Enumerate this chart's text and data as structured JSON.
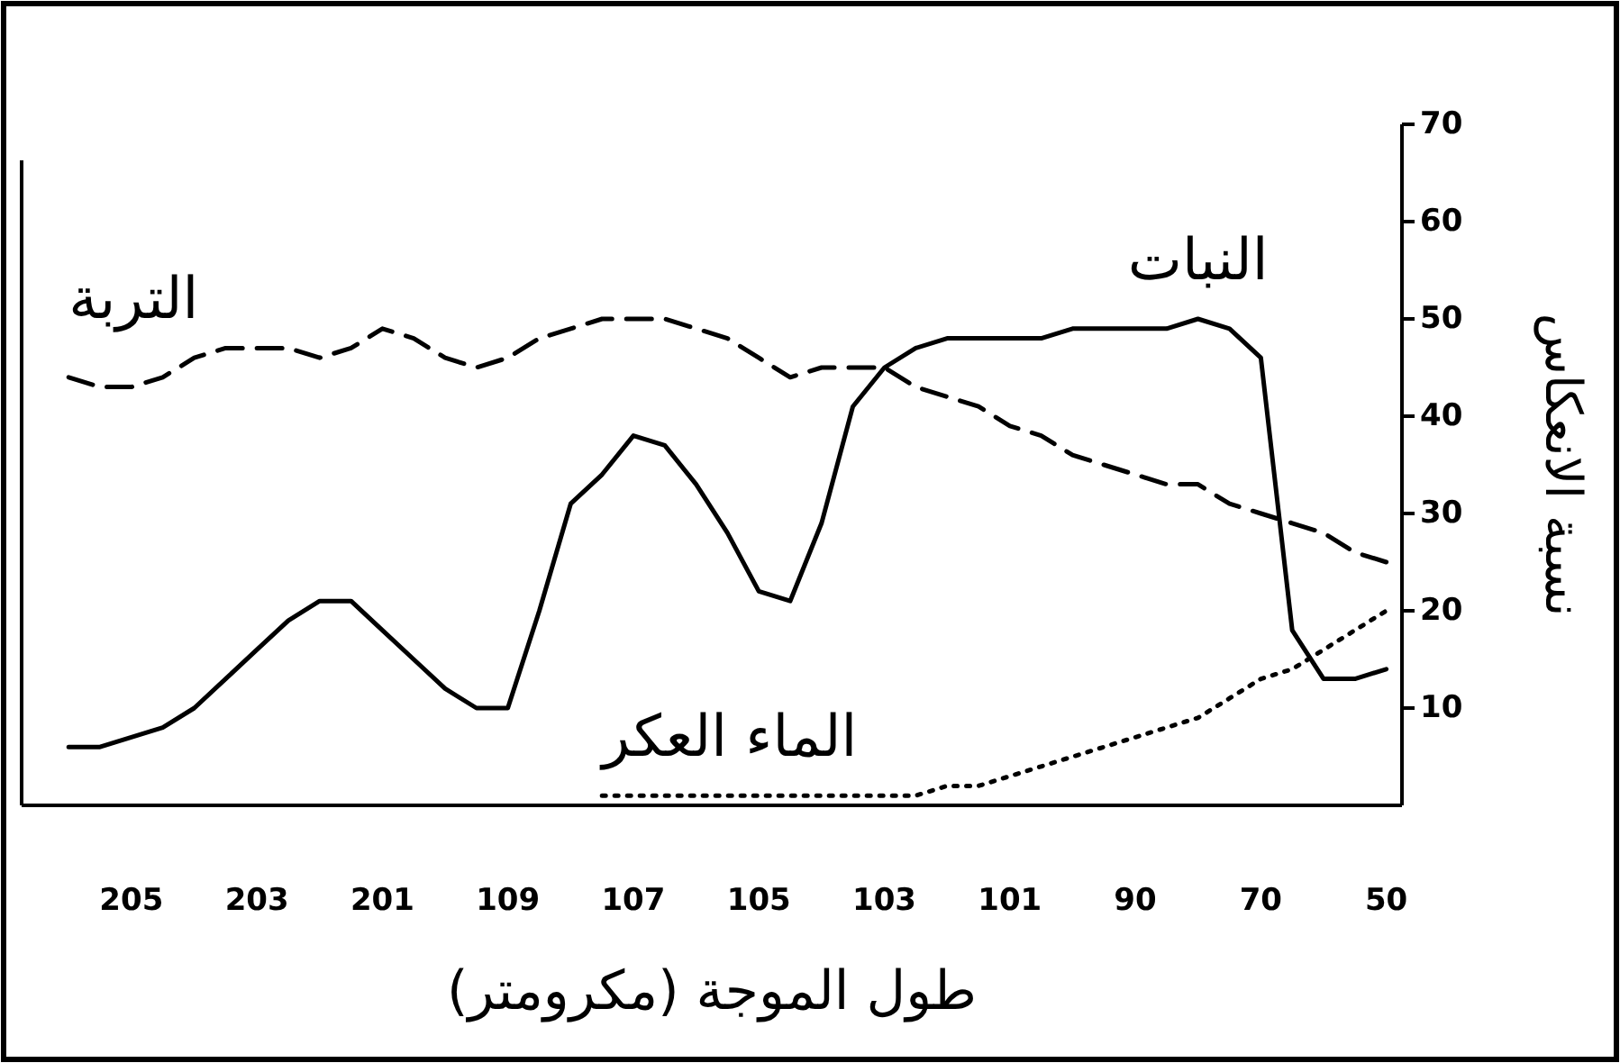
{
  "chart_data": {
    "type": "line",
    "xlabel": "طول الموجة (مكرومتر)",
    "ylabel": "نسبة الانعكاس",
    "categories": [
      null,
      null,
      null,
      "205",
      null,
      null,
      null,
      "203",
      null,
      null,
      null,
      "201",
      null,
      null,
      null,
      "109",
      null,
      null,
      null,
      "107",
      null,
      null,
      null,
      "105",
      null,
      null,
      null,
      "103",
      null,
      null,
      null,
      "101",
      null,
      null,
      null,
      "90",
      null,
      null,
      null,
      "70",
      null,
      null,
      null,
      "50"
    ],
    "ylim": [
      0,
      70
    ],
    "yticks": [
      10,
      20,
      30,
      40,
      50,
      60,
      70
    ],
    "grid": false,
    "legend": false,
    "marker": "none",
    "series": [
      {
        "name": "النبات",
        "color": "#000000",
        "line_style": "solid",
        "values": [
          null,
          6,
          6,
          7,
          8,
          10,
          13,
          16,
          19,
          21,
          21,
          18,
          15,
          12,
          10,
          10,
          20,
          31,
          34,
          38,
          37,
          33,
          28,
          22,
          21,
          29,
          41,
          45,
          47,
          48,
          48,
          48,
          48,
          49,
          49,
          49,
          49,
          50,
          49,
          46,
          18,
          13,
          13,
          14
        ]
      },
      {
        "name": "التربة",
        "color": "#000000",
        "line_style": "dashed",
        "values": [
          null,
          44,
          43,
          43,
          44,
          46,
          47,
          47,
          47,
          46,
          47,
          49,
          48,
          46,
          45,
          46,
          48,
          49,
          50,
          50,
          50,
          49,
          48,
          46,
          44,
          45,
          45,
          45,
          43,
          42,
          41,
          39,
          38,
          36,
          35,
          34,
          33,
          33,
          31,
          30,
          29,
          28,
          26,
          25
        ]
      },
      {
        "name": "الماء العكر",
        "color": "#000000",
        "line_style": "dotted",
        "values": [
          null,
          null,
          null,
          null,
          null,
          null,
          null,
          null,
          null,
          null,
          null,
          null,
          null,
          null,
          null,
          null,
          null,
          null,
          1,
          1,
          1,
          1,
          1,
          1,
          1,
          1,
          1,
          1,
          1,
          2,
          2,
          3,
          4,
          5,
          6,
          7,
          8,
          9,
          11,
          13,
          14,
          16,
          18,
          20
        ]
      }
    ]
  }
}
